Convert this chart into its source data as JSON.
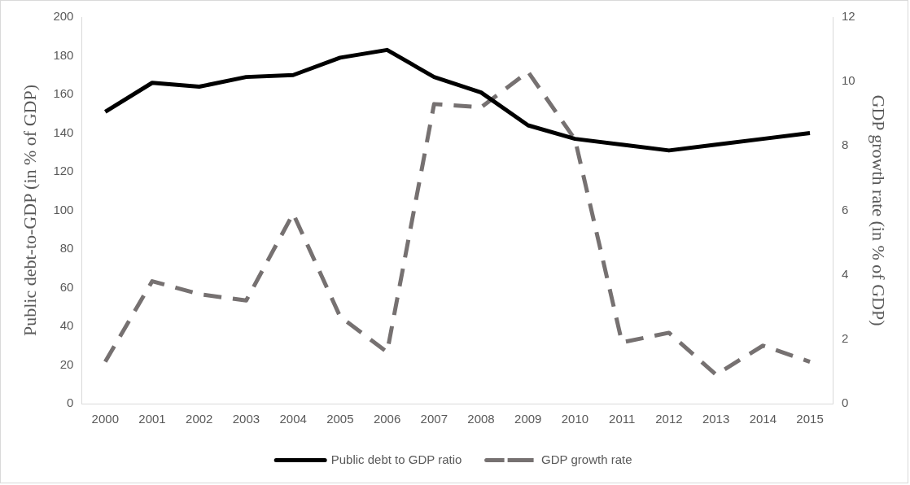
{
  "chart_data": {
    "type": "line",
    "ylabel": "Public debt-to-GDP (in % of GDP)",
    "y2label": "GDP growth rate (in % of GDP)",
    "categories": [
      "2000",
      "2001",
      "2002",
      "2003",
      "2004",
      "2005",
      "2006",
      "2007",
      "2008",
      "2009",
      "2010",
      "2011",
      "2012",
      "2013",
      "2014",
      "2015"
    ],
    "series": [
      {
        "name": "Public debt to GDP ratio",
        "color": "#000000",
        "line_style": "solid",
        "values": [
          151,
          166,
          164,
          169,
          170,
          179,
          183,
          169,
          161,
          144,
          137,
          134,
          131,
          134,
          137,
          140
        ]
      },
      {
        "name": "GDP growth rate",
        "color": "#767171",
        "line_style": "dashed",
        "axis": "y2",
        "values": [
          1.3,
          3.8,
          3.4,
          3.2,
          5.9,
          2.7,
          1.6,
          9.3,
          9.2,
          10.3,
          8.2,
          1.9,
          2.2,
          0.9,
          1.8,
          1.3
        ]
      }
    ],
    "ylim": [
      0,
      200
    ],
    "yticks": [
      0,
      20,
      40,
      60,
      80,
      100,
      120,
      140,
      160,
      180,
      200
    ],
    "y2lim": [
      0,
      12
    ],
    "y2ticks": [
      0,
      2,
      4,
      6,
      8,
      10,
      12
    ],
    "grid": false,
    "legend": "bottom",
    "marker": "none"
  }
}
